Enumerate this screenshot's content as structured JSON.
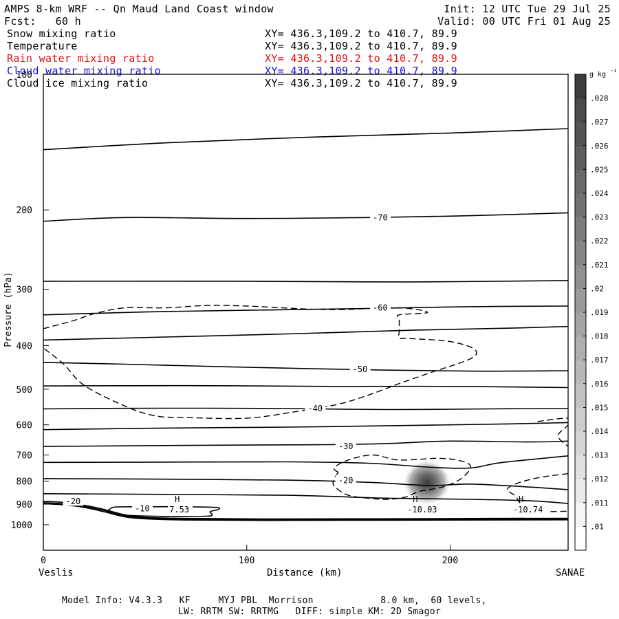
{
  "header": {
    "title": "AMPS 8-km WRF -- Qn Maud Land Coast window",
    "init": "Init: 12 UTC Tue 29 Jul 25",
    "fcst": "Fcst:   60 h",
    "valid": "Valid: 00 UTC Fri 01 Aug 25"
  },
  "fields": [
    {
      "name": "Snow mixing ratio",
      "xy": "XY= 436.3,109.2 to 410.7, 89.9",
      "color": "#000000"
    },
    {
      "name": "Temperature",
      "xy": "XY= 436.3,109.2 to 410.7, 89.9",
      "color": "#000000"
    },
    {
      "name": "Rain water mixing ratio",
      "xy": "XY= 436.3,109.2 to 410.7, 89.9",
      "color": "#e01010"
    },
    {
      "name": "Cloud water mixing ratio",
      "xy": "XY= 436.3,109.2 to 410.7, 89.9",
      "color": "#1010e0"
    },
    {
      "name": "Cloud ice mixing ratio",
      "xy": "XY= 436.3,109.2 to 410.7, 89.9",
      "color": "#000000"
    }
  ],
  "footer": {
    "line1": "Model Info: V4.3.3   KF     MYJ PBL  Morrison            8.0 km,  60 levels,",
    "line2": "LW: RRTM SW: RRTMG   DIFF: simple KM: 2D Smagor"
  },
  "chart_data": {
    "type": "cross-section",
    "xlabel": "Distance (km)",
    "ylabel": "Pressure (hPa)",
    "xlim": [
      0,
      258
    ],
    "ylim": [
      1050,
      100
    ],
    "yscale": "log",
    "x_ticks": [
      0,
      100,
      200
    ],
    "y_ticks": [
      100,
      200,
      300,
      400,
      500,
      600,
      700,
      800,
      900,
      1000
    ],
    "x_left_label": "Veslis",
    "x_right_label": "SANAE",
    "colorbar": {
      "unit": "g kg",
      "unit_exp": "-1",
      "ticks": [
        ".01",
        ".011",
        ".012",
        ".013",
        ".014",
        ".015",
        ".016",
        ".017",
        ".018",
        ".019",
        ".02",
        ".021",
        ".022",
        ".023",
        ".024",
        ".025",
        ".026",
        ".027",
        ".028"
      ],
      "colors": [
        "#ffffff",
        "#f4f4f4",
        "#eaeaea",
        "#e0e0e0",
        "#d6d6d6",
        "#cccccc",
        "#c2c2c2",
        "#b8b8b8",
        "#aeaeae",
        "#a4a4a4",
        "#9a9a9a",
        "#909090",
        "#868686",
        "#7c7c7c",
        "#727272",
        "#686868",
        "#5e5e5e",
        "#545454",
        "#4a4a4a",
        "#3c3c3c"
      ]
    },
    "isotherms": [
      {
        "label": "-70",
        "label_x": 162,
        "label_p": 208,
        "points": [
          [
            0,
            212
          ],
          [
            40,
            208
          ],
          [
            100,
            209
          ],
          [
            160,
            208
          ],
          [
            210,
            206
          ],
          [
            258,
            203
          ]
        ]
      },
      {
        "label": "",
        "label_x": null,
        "label_p": null,
        "points": [
          [
            0,
            147
          ],
          [
            60,
            142
          ],
          [
            130,
            138
          ],
          [
            200,
            135
          ],
          [
            258,
            132
          ]
        ]
      },
      {
        "label": "",
        "label_x": null,
        "label_p": null,
        "points": [
          [
            0,
            288
          ],
          [
            100,
            288
          ],
          [
            180,
            289
          ],
          [
            258,
            287
          ]
        ]
      },
      {
        "label": "-60",
        "label_x": 162,
        "label_p": 330,
        "points": [
          [
            0,
            342
          ],
          [
            50,
            337
          ],
          [
            100,
            334
          ],
          [
            160,
            331
          ],
          [
            210,
            328
          ],
          [
            258,
            327
          ]
        ]
      },
      {
        "label": "",
        "label_x": null,
        "label_p": null,
        "points": [
          [
            0,
            389
          ],
          [
            60,
            383
          ],
          [
            120,
            377
          ],
          [
            180,
            370
          ],
          [
            230,
            366
          ],
          [
            258,
            363
          ]
        ]
      },
      {
        "label": "-50",
        "label_x": 152,
        "label_p": 452,
        "points": [
          [
            0,
            436
          ],
          [
            40,
            440
          ],
          [
            90,
            446
          ],
          [
            150,
            452
          ],
          [
            210,
            456
          ],
          [
            258,
            455
          ]
        ]
      },
      {
        "label": "",
        "label_x": null,
        "label_p": null,
        "points": [
          [
            0,
            492
          ],
          [
            70,
            491
          ],
          [
            140,
            493
          ],
          [
            200,
            493
          ],
          [
            258,
            496
          ]
        ]
      },
      {
        "label": "-40",
        "label_x": 130,
        "label_p": 552,
        "points": [
          [
            0,
            553
          ],
          [
            60,
            551
          ],
          [
            120,
            552
          ],
          [
            170,
            555
          ],
          [
            220,
            553
          ],
          [
            258,
            552
          ]
        ]
      },
      {
        "label": "",
        "label_x": null,
        "label_p": null,
        "points": [
          [
            0,
            615
          ],
          [
            60,
            610
          ],
          [
            120,
            607
          ],
          [
            180,
            602
          ],
          [
            230,
            597
          ],
          [
            258,
            593
          ]
        ]
      },
      {
        "label": "-30",
        "label_x": 145,
        "label_p": 670,
        "points": [
          [
            0,
            670
          ],
          [
            60,
            667
          ],
          [
            110,
            665
          ],
          [
            140,
            664
          ],
          [
            170,
            660
          ],
          [
            200,
            652
          ],
          [
            240,
            655
          ],
          [
            258,
            652
          ]
        ]
      },
      {
        "label": "",
        "label_x": null,
        "label_p": null,
        "points": [
          [
            0,
            727
          ],
          [
            60,
            726
          ],
          [
            120,
            725
          ],
          [
            160,
            730
          ],
          [
            190,
            745
          ],
          [
            210,
            748
          ],
          [
            225,
            728
          ],
          [
            258,
            703
          ]
        ]
      },
      {
        "label": "-20",
        "label_x": 145,
        "label_p": 797,
        "points": [
          [
            0,
            790
          ],
          [
            60,
            792
          ],
          [
            120,
            796
          ],
          [
            160,
            805
          ],
          [
            190,
            818
          ],
          [
            210,
            812
          ],
          [
            240,
            825
          ],
          [
            258,
            836
          ]
        ]
      },
      {
        "label": "",
        "label_x": null,
        "label_p": null,
        "points": [
          [
            0,
            853
          ],
          [
            60,
            856
          ],
          [
            120,
            860
          ],
          [
            170,
            873
          ],
          [
            210,
            878
          ],
          [
            240,
            885
          ],
          [
            258,
            897
          ]
        ]
      },
      {
        "label": "-20",
        "label_x": 11,
        "label_p": 888,
        "points": [
          [
            0,
            887
          ],
          [
            10,
            892
          ],
          [
            20,
            905
          ],
          [
            30,
            925
          ],
          [
            40,
            950
          ],
          [
            50,
            962
          ],
          [
            70,
            968
          ],
          [
            110,
            971
          ],
          [
            160,
            970
          ],
          [
            220,
            968
          ],
          [
            258,
            967
          ]
        ]
      },
      {
        "label": "",
        "label_x": null,
        "label_p": null,
        "points": [
          [
            0,
            893
          ],
          [
            10,
            898
          ],
          [
            20,
            910
          ],
          [
            30,
            930
          ],
          [
            40,
            955
          ],
          [
            50,
            966
          ],
          [
            70,
            972
          ],
          [
            110,
            975
          ],
          [
            160,
            974
          ],
          [
            220,
            972
          ],
          [
            258,
            971
          ]
        ]
      },
      {
        "label": "",
        "label_x": null,
        "label_p": null,
        "points": [
          [
            0,
            898
          ],
          [
            10,
            903
          ],
          [
            20,
            915
          ],
          [
            30,
            936
          ],
          [
            40,
            960
          ],
          [
            50,
            970
          ],
          [
            70,
            976
          ],
          [
            110,
            978
          ],
          [
            160,
            977
          ],
          [
            220,
            976
          ],
          [
            258,
            975
          ]
        ]
      },
      {
        "label": "-10",
        "label_x": 45,
        "label_p": 920,
        "points": [
          [
            33,
            920
          ],
          [
            36,
            913
          ],
          [
            50,
            912
          ],
          [
            70,
            912
          ],
          [
            85,
            915
          ],
          [
            86,
            925
          ],
          [
            82,
            935
          ],
          [
            83,
            950
          ],
          [
            80,
            957
          ],
          [
            60,
            958
          ],
          [
            40,
            952
          ],
          [
            32,
            937
          ],
          [
            33,
            920
          ]
        ]
      }
    ],
    "dashed_contours": [
      {
        "points": [
          [
            0,
            367
          ],
          [
            15,
            352
          ],
          [
            25,
            340
          ],
          [
            40,
            330
          ],
          [
            60,
            330
          ],
          [
            80,
            326
          ],
          [
            100,
            327
          ],
          [
            140,
            333
          ],
          [
            175,
            330
          ],
          [
            189,
            338
          ],
          [
            175,
            342
          ],
          [
            175,
            350
          ],
          [
            175,
            372
          ],
          [
            175,
            385
          ],
          [
            180,
            386
          ],
          [
            200,
            392
          ],
          [
            212,
            408
          ],
          [
            210,
            428
          ],
          [
            190,
            460
          ],
          [
            175,
            486
          ],
          [
            160,
            515
          ],
          [
            145,
            540
          ],
          [
            125,
            560
          ],
          [
            100,
            580
          ],
          [
            70,
            578
          ],
          [
            55,
            573
          ],
          [
            40,
            545
          ],
          [
            20,
            490
          ],
          [
            10,
            440
          ],
          [
            0,
            405
          ]
        ]
      },
      {
        "points": [
          [
            145,
            765
          ],
          [
            143,
            747
          ],
          [
            150,
            718
          ],
          [
            162,
            700
          ],
          [
            175,
            718
          ],
          [
            195,
            712
          ],
          [
            207,
            725
          ],
          [
            210,
            748
          ],
          [
            205,
            792
          ],
          [
            196,
            825
          ],
          [
            185,
            843
          ],
          [
            178,
            868
          ],
          [
            170,
            878
          ],
          [
            162,
            875
          ],
          [
            150,
            860
          ],
          [
            143,
            820
          ],
          [
            143,
            790
          ],
          [
            145,
            765
          ]
        ]
      },
      {
        "points": [
          [
            243,
            590
          ],
          [
            258,
            580
          ],
          [
            258,
            600
          ],
          [
            253,
            635
          ],
          [
            258,
            670
          ]
        ]
      },
      {
        "points": [
          [
            258,
            770
          ],
          [
            248,
            780
          ],
          [
            240,
            792
          ],
          [
            232,
            812
          ],
          [
            228,
            836
          ],
          [
            232,
            862
          ],
          [
            234,
            890
          ],
          [
            237,
            910
          ],
          [
            245,
            933
          ],
          [
            258,
            933
          ]
        ]
      }
    ],
    "snow_max": {
      "x": 188,
      "p": 800,
      "value": 0.028
    },
    "H_marks": [
      {
        "x": 66,
        "label": "H",
        "value": "7.53"
      },
      {
        "x": 183,
        "label": "H",
        "value": "-10.03"
      },
      {
        "x": 235,
        "label": "H",
        "value": "-10.74"
      }
    ]
  }
}
